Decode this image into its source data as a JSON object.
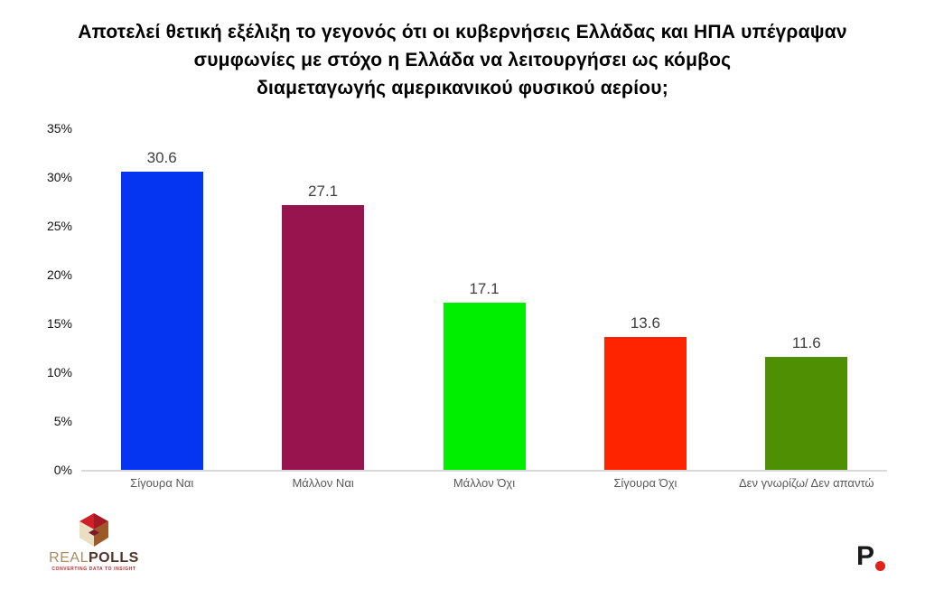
{
  "title": {
    "lines": [
      "Αποτελεί θετική εξέλιξη το γεγονός ότι οι κυβερνήσεις Ελλάδας και ΗΠΑ υπέγραψαν",
      "συμφωνίες με στόχο η Ελλάδα να λειτουργήσει ως κόμβος",
      "διαμεταγωγής αμερικανικού φυσικού αερίου;"
    ]
  },
  "chart_data": {
    "type": "bar",
    "title": "Αποτελεί θετική εξέλιξη το γεγονός ότι οι κυβερνήσεις Ελλάδας και ΗΠΑ υπέγραψαν συμφωνίες με στόχο η Ελλάδα να λειτουργήσει ως κόμβος διαμεταγωγής αμερικανικού φυσικού αερίου;",
    "categories": [
      "Σίγουρα Ναι",
      "Μάλλον Ναι",
      "Μάλλον Όχι",
      "Σίγουρα Όχι",
      "Δεν γνωρίζω/ Δεν απαντώ"
    ],
    "values": [
      30.6,
      27.1,
      17.1,
      13.6,
      11.6
    ],
    "value_labels": [
      "30.6",
      "27.1",
      "17.1",
      "13.6",
      "11.6"
    ],
    "bar_colors": [
      "#0535f0",
      "#97144f",
      "#00ef00",
      "#ff2400",
      "#4f8f04"
    ],
    "xlabel": "",
    "ylabel": "",
    "ylim": [
      0,
      35
    ],
    "ytick_step": 5,
    "ytick_suffix": "%",
    "grid": false,
    "legend": null,
    "baseline_color": "#d9d9d9",
    "value_label_color": "#3f3f3f",
    "category_label_color": "#595959"
  },
  "footer": {
    "realpolls_logo": {
      "word_light": "REAL",
      "word_bold": "POLLS",
      "tagline": "CONVERTING DATA TO INSIGHT",
      "cube_top_color": "#ce2027",
      "cube_top_shade_color": "#a31a22",
      "cube_left_color": "#eadfc2",
      "cube_right_color": "#9b5a28",
      "cube_core_color": "#7c1a2c"
    },
    "p_logo": {
      "letter": "P",
      "letter_color": "#1a1a1a",
      "dot_color": "#e2231a"
    }
  }
}
